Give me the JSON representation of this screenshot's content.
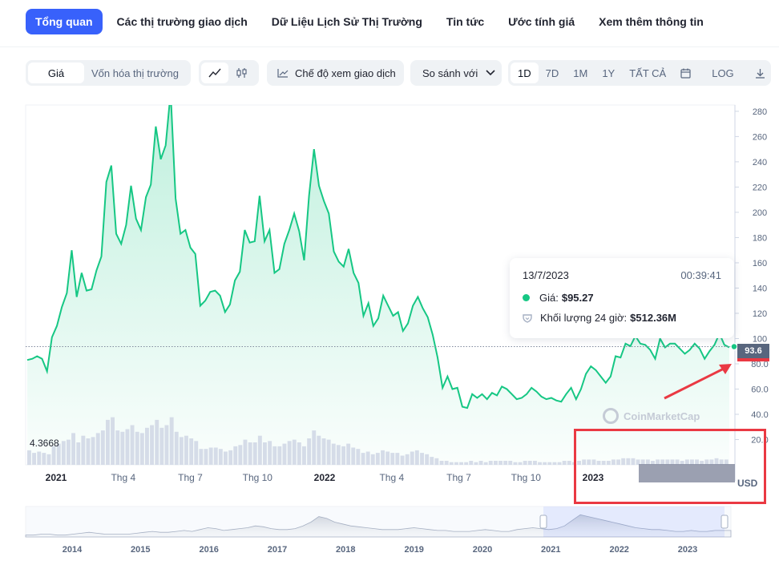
{
  "nav": {
    "items": [
      {
        "label": "Tổng quan",
        "active": true
      },
      {
        "label": "Các thị trường giao dịch",
        "active": false
      },
      {
        "label": "Dữ Liệu Lịch Sử Thị Trường",
        "active": false
      },
      {
        "label": "Tin tức",
        "active": false
      },
      {
        "label": "Ước tính giá",
        "active": false
      },
      {
        "label": "Xem thêm thông tin",
        "active": false
      }
    ]
  },
  "toolbar": {
    "metric_tabs": [
      "Giá",
      "Vốn hóa thị trường"
    ],
    "trading_view_label": "Chế độ xem giao dịch",
    "compare_label": "So sánh với",
    "ranges": [
      "1D",
      "7D",
      "1M",
      "1Y",
      "TẤT CẢ"
    ],
    "selected_range": "1D",
    "log_label": "LOG",
    "icons": [
      "line-chart-icon",
      "candlestick-icon",
      "trading-view-icon",
      "chevron-down-icon",
      "calendar-icon",
      "download-icon"
    ]
  },
  "tooltip": {
    "date": "13/7/2023",
    "time": "00:39:41",
    "price_label": "Giá:",
    "price_value": "$95.27",
    "volume_label": "Khối lượng 24 giờ:",
    "volume_value": "$512.36M"
  },
  "current_price_badge": "93.6",
  "currency_label": "USD",
  "watermark": "CoinMarketCap",
  "colors": {
    "accent": "#3861fb",
    "line": "#16c784",
    "down": "#ea3943",
    "annotation": "#ea3943"
  },
  "chart_data": {
    "type": "area",
    "y_axis_ticks": [
      "280",
      "260",
      "240",
      "220",
      "200",
      "180",
      "160",
      "140",
      "120",
      "100",
      "80.0",
      "60.0",
      "40.0",
      "20.0"
    ],
    "ylim": [
      0,
      285
    ],
    "x_tick_labels": [
      "2021",
      "Thg 4",
      "Thg 7",
      "Thg 10",
      "2022",
      "Thg 4",
      "Thg 7",
      "Thg 10",
      "2023"
    ],
    "volume_start_label": "4.3668",
    "series": [
      {
        "values": [
          83,
          84,
          86,
          84,
          74,
          101,
          110,
          125,
          136,
          170,
          133,
          152,
          138,
          139,
          154,
          165,
          224,
          237,
          183,
          175,
          190,
          221,
          195,
          186,
          212,
          222,
          268,
          242,
          253,
          295,
          211,
          183,
          186,
          172,
          167,
          126,
          130,
          137,
          138,
          134,
          121,
          127,
          146,
          153,
          186,
          176,
          177,
          213,
          177,
          186,
          152,
          155,
          175,
          186,
          199,
          185,
          162,
          213,
          250,
          221,
          209,
          199,
          169,
          161,
          157,
          171,
          152,
          144,
          118,
          128,
          110,
          116,
          134,
          126,
          118,
          121,
          106,
          112,
          126,
          133,
          124,
          117,
          103,
          85,
          61,
          70,
          60,
          61,
          46,
          45,
          56,
          53,
          56,
          52,
          57,
          55,
          62,
          60,
          56,
          52,
          53,
          56,
          61,
          58,
          54,
          52,
          53,
          51,
          50,
          56,
          61,
          52,
          60,
          72,
          78,
          75,
          70,
          65,
          70,
          86,
          85,
          96,
          94,
          102,
          96,
          95,
          91,
          84,
          100,
          93,
          96,
          96,
          92,
          88,
          91,
          96,
          92,
          84,
          90,
          95,
          104,
          95,
          93
        ]
      }
    ],
    "volume_values": [
      11,
      9,
      10,
      9,
      8,
      14,
      16,
      18,
      19,
      24,
      17,
      22,
      20,
      21,
      24,
      26,
      34,
      36,
      26,
      25,
      27,
      30,
      25,
      24,
      28,
      30,
      34,
      28,
      30,
      36,
      25,
      21,
      22,
      20,
      18,
      12,
      12,
      13,
      13,
      12,
      10,
      11,
      14,
      15,
      19,
      17,
      17,
      22,
      17,
      18,
      14,
      14,
      16,
      18,
      19,
      17,
      14,
      20,
      26,
      22,
      20,
      19,
      16,
      15,
      14,
      16,
      13,
      12,
      9,
      10,
      8,
      9,
      11,
      10,
      9,
      9,
      7,
      8,
      10,
      11,
      9,
      8,
      6,
      5,
      3,
      3,
      2,
      2,
      2,
      2,
      3,
      2,
      3,
      2,
      3,
      3,
      3,
      3,
      3,
      2,
      2,
      3,
      3,
      3,
      2,
      2,
      2,
      2,
      2,
      3,
      3,
      2,
      3,
      4,
      4,
      4,
      3,
      3,
      3,
      4,
      4,
      5,
      5,
      5,
      4,
      4,
      4,
      3,
      4,
      4,
      4,
      4,
      4,
      3,
      4,
      4,
      4,
      3,
      4,
      4,
      5,
      4,
      4
    ],
    "navigator_x_labels": [
      "2014",
      "2015",
      "2016",
      "2017",
      "2018",
      "2019",
      "2020",
      "2021",
      "2022",
      "2023"
    ],
    "navigator_values": [
      2,
      2,
      3,
      3,
      2,
      2,
      3,
      4,
      5,
      4,
      3,
      3,
      3,
      3,
      4,
      5,
      6,
      5,
      5,
      6,
      7,
      6,
      8,
      10,
      9,
      7,
      8,
      9,
      10,
      12,
      11,
      9,
      8,
      8,
      9,
      12,
      16,
      22,
      20,
      16,
      14,
      12,
      11,
      10,
      9,
      8,
      8,
      8,
      9,
      10,
      9,
      8,
      7,
      7,
      6,
      6,
      6,
      7,
      8,
      7,
      6,
      6,
      8,
      9,
      10,
      9,
      8,
      9,
      12,
      18,
      24,
      22,
      20,
      18,
      16,
      14,
      12,
      10,
      9,
      8,
      8,
      7,
      6,
      6,
      7,
      6,
      6,
      7,
      7,
      7
    ]
  }
}
